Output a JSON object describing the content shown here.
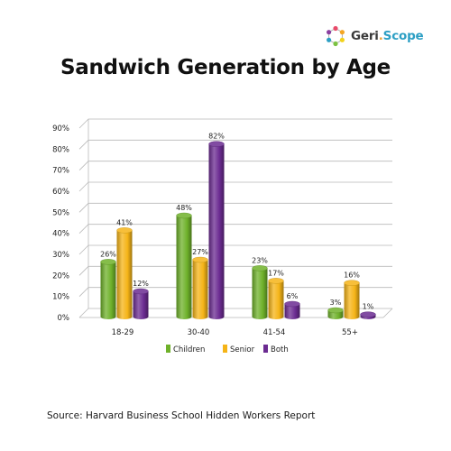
{
  "logo": {
    "name_prefix": "Geri",
    "name_dot": ".",
    "name_suffix": "Scope",
    "icon": "molecule-ring-icon"
  },
  "source": "Source: Harvard Business School Hidden Workers Report",
  "colors": {
    "children": "#6fb12a",
    "senior": "#f5b417",
    "both": "#6b2b91",
    "grid": "#b9b9b9",
    "text": "#222222"
  },
  "chart_data": {
    "type": "bar",
    "title": "Sandwich Generation by Age",
    "categories": [
      "18-29",
      "30-40",
      "41-54",
      "55+"
    ],
    "series": [
      {
        "name": "Children",
        "values": [
          26,
          48,
          23,
          3
        ],
        "labels": [
          "26%",
          "48%",
          "23%",
          "3%"
        ]
      },
      {
        "name": "Senior",
        "values": [
          41,
          27,
          17,
          16
        ],
        "labels": [
          "41%",
          "27%",
          "17%",
          "16%"
        ]
      },
      {
        "name": "Both",
        "values": [
          12,
          82,
          6,
          1
        ],
        "labels": [
          "12%",
          "82%",
          "6%",
          "1%"
        ]
      }
    ],
    "y_ticks": [
      "0%",
      "10%",
      "20%",
      "30%",
      "40%",
      "50%",
      "60%",
      "70%",
      "80%",
      "90%"
    ],
    "ylim": [
      0,
      90
    ],
    "grid": true,
    "legend_position": "bottom-center",
    "style": "3d-cylinder"
  }
}
